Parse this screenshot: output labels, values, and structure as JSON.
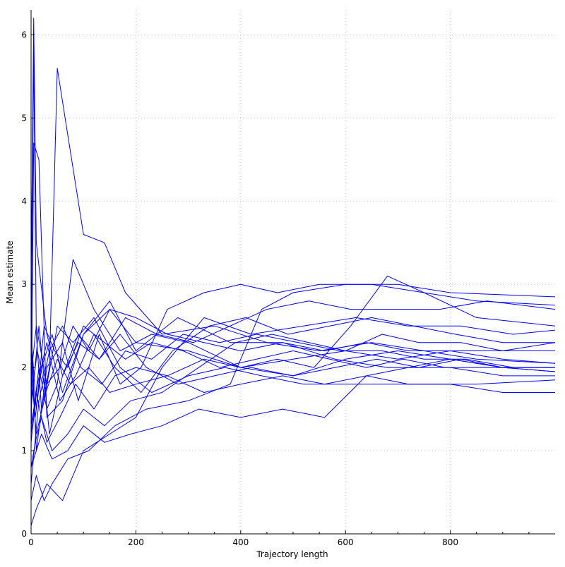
{
  "chart_data": {
    "type": "line",
    "title": "",
    "xlabel": "Trajectory length",
    "ylabel": "Mean estimate",
    "xlim": [
      0,
      1000
    ],
    "ylim": [
      0,
      6.3
    ],
    "x_ticks": [
      0,
      200,
      400,
      600,
      800
    ],
    "x_tick_labels": [
      "0",
      "200",
      "400",
      "600",
      "800"
    ],
    "y_ticks": [
      0,
      1,
      2,
      3,
      4,
      5,
      6
    ],
    "y_tick_labels": [
      "0",
      "1",
      "2",
      "3",
      "4",
      "5",
      "6"
    ],
    "grid": true,
    "legend": "none",
    "line_color": "#0000ff",
    "series": [
      {
        "x": [
          0,
          5,
          10,
          30,
          60,
          100,
          150,
          200,
          300,
          400,
          500,
          600,
          700,
          800,
          900,
          1000
        ],
        "values": [
          3.0,
          6.2,
          3.5,
          2.4,
          1.7,
          2.4,
          2.7,
          2.3,
          2.2,
          2.0,
          1.9,
          2.1,
          2.2,
          2.1,
          2.0,
          1.95
        ]
      },
      {
        "x": [
          0,
          5,
          10,
          20,
          35,
          50,
          70,
          100,
          140,
          180,
          250,
          350,
          450,
          550,
          650,
          750,
          850,
          1000
        ],
        "values": [
          2.0,
          5.8,
          2.4,
          1.5,
          2.0,
          5.6,
          4.8,
          3.6,
          3.5,
          2.9,
          2.4,
          2.5,
          2.3,
          2.2,
          2.3,
          2.2,
          2.1,
          2.05
        ]
      },
      {
        "x": [
          0,
          15,
          30,
          50,
          80,
          120,
          170,
          230,
          300,
          400,
          500,
          600,
          700,
          800,
          900,
          1000
        ],
        "values": [
          1.2,
          2.0,
          1.5,
          1.8,
          3.3,
          2.7,
          2.2,
          2.4,
          2.3,
          2.0,
          2.1,
          2.2,
          2.1,
          2.2,
          2.2,
          2.3
        ]
      },
      {
        "x": [
          0,
          5,
          15,
          30,
          60,
          100,
          150,
          200,
          280,
          380,
          480,
          580,
          680,
          800,
          900,
          1000
        ],
        "values": [
          1.0,
          4.7,
          4.5,
          1.4,
          1.6,
          2.4,
          2.8,
          2.2,
          2.6,
          2.3,
          2.3,
          2.1,
          2.0,
          2.0,
          1.9,
          1.9
        ]
      },
      {
        "x": [
          0,
          10,
          25,
          40,
          70,
          110,
          160,
          220,
          300,
          380,
          440,
          500,
          600,
          700,
          800,
          1000
        ],
        "values": [
          0.4,
          0.7,
          0.4,
          0.6,
          0.9,
          1.0,
          1.3,
          1.5,
          1.6,
          1.8,
          2.7,
          2.9,
          3.0,
          3.0,
          2.9,
          2.85
        ]
      },
      {
        "x": [
          0,
          10,
          30,
          60,
          100,
          150,
          200,
          250,
          330,
          420,
          520,
          620,
          720,
          820,
          920,
          1000
        ],
        "values": [
          0.1,
          0.3,
          0.6,
          0.4,
          1.0,
          1.2,
          1.4,
          2.0,
          2.6,
          2.4,
          2.5,
          2.6,
          2.5,
          2.5,
          2.4,
          2.45
        ]
      },
      {
        "x": [
          0,
          20,
          40,
          70,
          100,
          140,
          190,
          250,
          320,
          400,
          480,
          560,
          640,
          720,
          800,
          900,
          1000
        ],
        "values": [
          0.8,
          1.2,
          0.9,
          1.0,
          1.3,
          1.1,
          1.2,
          1.3,
          1.5,
          1.4,
          1.5,
          1.4,
          1.9,
          2.0,
          2.1,
          2.0,
          2.0
        ]
      },
      {
        "x": [
          0,
          10,
          30,
          60,
          90,
          130,
          170,
          210,
          260,
          330,
          400,
          470,
          550,
          650,
          750,
          850,
          1000
        ],
        "values": [
          2.5,
          1.0,
          2.0,
          2.3,
          1.6,
          2.4,
          1.8,
          2.0,
          2.7,
          2.9,
          3.0,
          2.9,
          3.0,
          3.0,
          2.9,
          2.8,
          2.75
        ]
      },
      {
        "x": [
          0,
          15,
          35,
          60,
          90,
          130,
          180,
          240,
          310,
          380,
          450,
          530,
          610,
          690,
          780,
          870,
          1000
        ],
        "values": [
          1.5,
          2.5,
          1.2,
          1.9,
          2.4,
          2.1,
          2.6,
          2.4,
          2.3,
          2.5,
          2.7,
          2.8,
          2.7,
          2.7,
          2.7,
          2.8,
          2.7
        ]
      },
      {
        "x": [
          0,
          10,
          25,
          50,
          80,
          120,
          170,
          230,
          300,
          370,
          440,
          520,
          600,
          680,
          760,
          850,
          1000
        ],
        "values": [
          2.0,
          1.2,
          1.6,
          2.5,
          2.3,
          2.6,
          2.0,
          1.7,
          1.9,
          2.0,
          1.9,
          1.8,
          1.8,
          1.8,
          1.8,
          1.8,
          1.85
        ]
      },
      {
        "x": [
          0,
          10,
          30,
          55,
          85,
          120,
          160,
          200,
          260,
          330,
          400,
          480,
          560,
          640,
          720,
          800,
          900,
          1000
        ],
        "values": [
          1.3,
          1.7,
          1.1,
          1.4,
          1.8,
          1.5,
          1.9,
          2.0,
          1.9,
          1.7,
          1.8,
          1.9,
          1.8,
          1.9,
          1.8,
          1.8,
          1.7,
          1.7
        ]
      },
      {
        "x": [
          0,
          12,
          28,
          50,
          75,
          110,
          150,
          200,
          260,
          330,
          400,
          470,
          540,
          610,
          680,
          750,
          850,
          1000
        ],
        "values": [
          1.6,
          2.2,
          1.7,
          2.1,
          1.8,
          2.0,
          1.7,
          1.8,
          1.9,
          2.1,
          2.0,
          2.1,
          2.0,
          2.5,
          3.1,
          2.9,
          2.6,
          2.5
        ]
      },
      {
        "x": [
          0,
          8,
          20,
          40,
          70,
          100,
          140,
          190,
          250,
          320,
          390,
          460,
          530,
          600,
          670,
          740,
          820,
          900,
          1000
        ],
        "values": [
          0.8,
          1.1,
          1.4,
          1.0,
          1.2,
          1.5,
          1.3,
          1.6,
          1.7,
          2.0,
          2.3,
          2.4,
          2.3,
          2.2,
          2.4,
          2.3,
          2.3,
          2.2,
          2.2
        ]
      },
      {
        "x": [
          0,
          10,
          25,
          45,
          70,
          100,
          140,
          180,
          230,
          290,
          360,
          430,
          500,
          570,
          640,
          710,
          790,
          880,
          1000
        ],
        "values": [
          2.4,
          1.5,
          2.5,
          2.2,
          2.0,
          2.5,
          2.3,
          2.1,
          2.3,
          2.2,
          2.0,
          2.1,
          2.2,
          2.1,
          2.0,
          2.1,
          2.0,
          2.0,
          2.0
        ]
      },
      {
        "x": [
          0,
          10,
          30,
          55,
          80,
          110,
          150,
          200,
          260,
          330,
          400,
          480,
          560,
          640,
          720,
          800,
          900,
          1000
        ],
        "values": [
          1.9,
          2.5,
          1.8,
          2.0,
          2.5,
          2.2,
          2.7,
          2.6,
          2.4,
          2.3,
          2.2,
          2.3,
          2.2,
          2.3,
          2.2,
          2.2,
          2.1,
          2.05
        ]
      },
      {
        "x": [
          0,
          12,
          30,
          55,
          85,
          120,
          160,
          210,
          270,
          340,
          410,
          490,
          570,
          650,
          730,
          810,
          900,
          1000
        ],
        "values": [
          1.1,
          1.8,
          2.3,
          1.6,
          1.9,
          2.4,
          2.0,
          1.7,
          2.2,
          2.5,
          2.6,
          2.4,
          2.5,
          2.6,
          2.5,
          2.4,
          2.3,
          2.3
        ]
      },
      {
        "x": [
          0,
          8,
          20,
          40,
          60,
          90,
          130,
          170,
          220,
          280,
          350,
          420,
          500,
          580,
          660,
          740,
          820,
          900,
          1000
        ],
        "values": [
          2.2,
          1.4,
          2.0,
          2.4,
          1.9,
          2.3,
          2.1,
          2.4,
          2.0,
          1.8,
          1.9,
          2.0,
          1.9,
          2.0,
          2.1,
          2.0,
          2.1,
          2.0,
          1.95
        ]
      },
      {
        "x": [
          0,
          15,
          35,
          60,
          95,
          135,
          180,
          230,
          290,
          360,
          430,
          510,
          590,
          670,
          750,
          830,
          920,
          1000
        ],
        "values": [
          0.6,
          1.6,
          2.2,
          2.5,
          2.0,
          1.8,
          2.2,
          2.1,
          2.4,
          2.3,
          2.4,
          2.3,
          2.2,
          2.2,
          2.1,
          2.1,
          2.0,
          2.0
        ]
      }
    ]
  }
}
